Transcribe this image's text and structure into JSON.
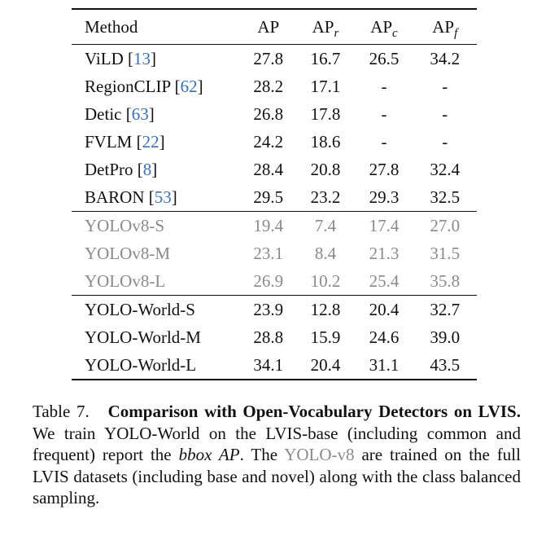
{
  "table": {
    "headers": {
      "method": "Method",
      "ap": "AP",
      "ap_r_base": "AP",
      "ap_r_sub": "r",
      "ap_c_base": "AP",
      "ap_c_sub": "c",
      "ap_f_base": "AP",
      "ap_f_sub": "f"
    },
    "rows": [
      {
        "name": "ViLD",
        "ref": "13",
        "ap": "27.8",
        "apr": "16.7",
        "apc": "26.5",
        "apf": "34.2"
      },
      {
        "name": "RegionCLIP",
        "ref": "62",
        "ap": "28.2",
        "apr": "17.1",
        "apc": "-",
        "apf": "-"
      },
      {
        "name": "Detic",
        "ref": "63",
        "ap": "26.8",
        "apr": "17.8",
        "apc": "-",
        "apf": "-"
      },
      {
        "name": "FVLM",
        "ref": "22",
        "ap": "24.2",
        "apr": "18.6",
        "apc": "-",
        "apf": "-"
      },
      {
        "name": "DetPro",
        "ref": "8",
        "ap": "28.4",
        "apr": "20.8",
        "apc": "27.8",
        "apf": "32.4"
      },
      {
        "name": "BARON",
        "ref": "53",
        "ap": "29.5",
        "apr": "23.2",
        "apc": "29.3",
        "apf": "32.5"
      },
      {
        "name": "YOLOv8-S",
        "ap": "19.4",
        "apr": "7.4",
        "apc": "17.4",
        "apf": "27.0"
      },
      {
        "name": "YOLOv8-M",
        "ap": "23.1",
        "apr": "8.4",
        "apc": "21.3",
        "apf": "31.5"
      },
      {
        "name": "YOLOv8-L",
        "ap": "26.9",
        "apr": "10.2",
        "apc": "25.4",
        "apf": "35.8"
      },
      {
        "name": "YOLO-World-S",
        "ap": "23.9",
        "apr": "12.8",
        "apc": "20.4",
        "apf": "32.7"
      },
      {
        "name": "YOLO-World-M",
        "ap": "28.8",
        "apr": "15.9",
        "apc": "24.6",
        "apf": "39.0"
      },
      {
        "name": "YOLO-World-L",
        "ap": "34.1",
        "apr": "20.4",
        "apc": "31.1",
        "apf": "43.5"
      }
    ]
  },
  "caption": {
    "label": "Table 7.",
    "title": "Comparison with Open-Vocabulary Detectors on LVIS.",
    "text1": "We train YOLO-World on the LVIS-base (including common and frequent) report the",
    "italic": "bbox AP",
    "text2": ". The",
    "gray": "YOLO-v8",
    "text3": "are trained on the full LVIS datasets (including base and novel) along with the class balanced sampling."
  },
  "colors": {
    "reference_link": "#3b6fb6",
    "gray_rows": "#8a8a8a",
    "text": "#111111"
  }
}
